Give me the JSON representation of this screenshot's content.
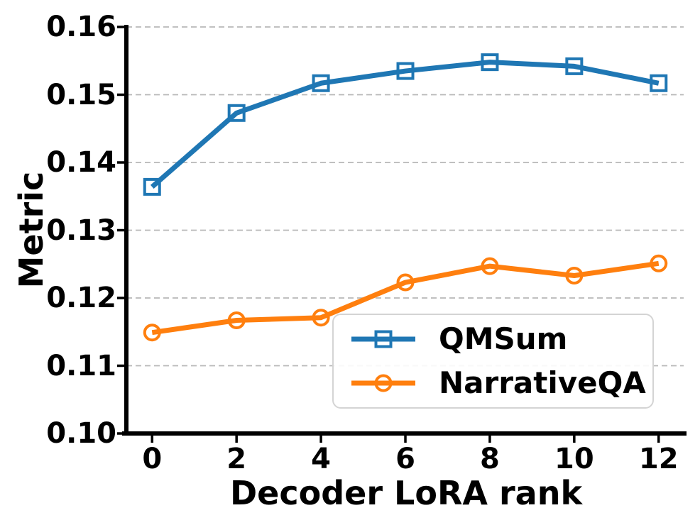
{
  "chart_data": {
    "type": "line",
    "title": "",
    "xlabel": "Decoder LoRA rank",
    "ylabel": "Metric",
    "x": [
      0,
      2,
      4,
      6,
      8,
      10,
      12
    ],
    "xtick_labels": [
      "0",
      "2",
      "4",
      "6",
      "8",
      "10",
      "12"
    ],
    "yticks": [
      0.1,
      0.11,
      0.12,
      0.13,
      0.14,
      0.15,
      0.16
    ],
    "ytick_labels": [
      "0.10",
      "0.11",
      "0.12",
      "0.13",
      "0.14",
      "0.15",
      "0.16"
    ],
    "xlim": [
      -0.61,
      12.66
    ],
    "ylim": [
      0.1,
      0.16
    ],
    "grid": true,
    "grid_axis": "y",
    "legend_position": "lower-right-inside",
    "series": [
      {
        "name": "QMSum",
        "color": "#1f77b4",
        "marker": "square",
        "values": [
          0.1364,
          0.1473,
          0.1517,
          0.1535,
          0.1548,
          0.1542,
          0.1517
        ]
      },
      {
        "name": "NarrativeQA",
        "color": "#ff7f0e",
        "marker": "circle",
        "values": [
          0.1149,
          0.1167,
          0.1171,
          0.1223,
          0.1247,
          0.1233,
          0.1251
        ]
      }
    ],
    "style": {
      "grid_color": "#b8b8b8",
      "axis_color": "#000000",
      "legend_border_color": "#d4d4d4",
      "background_color": "#ffffff"
    }
  }
}
